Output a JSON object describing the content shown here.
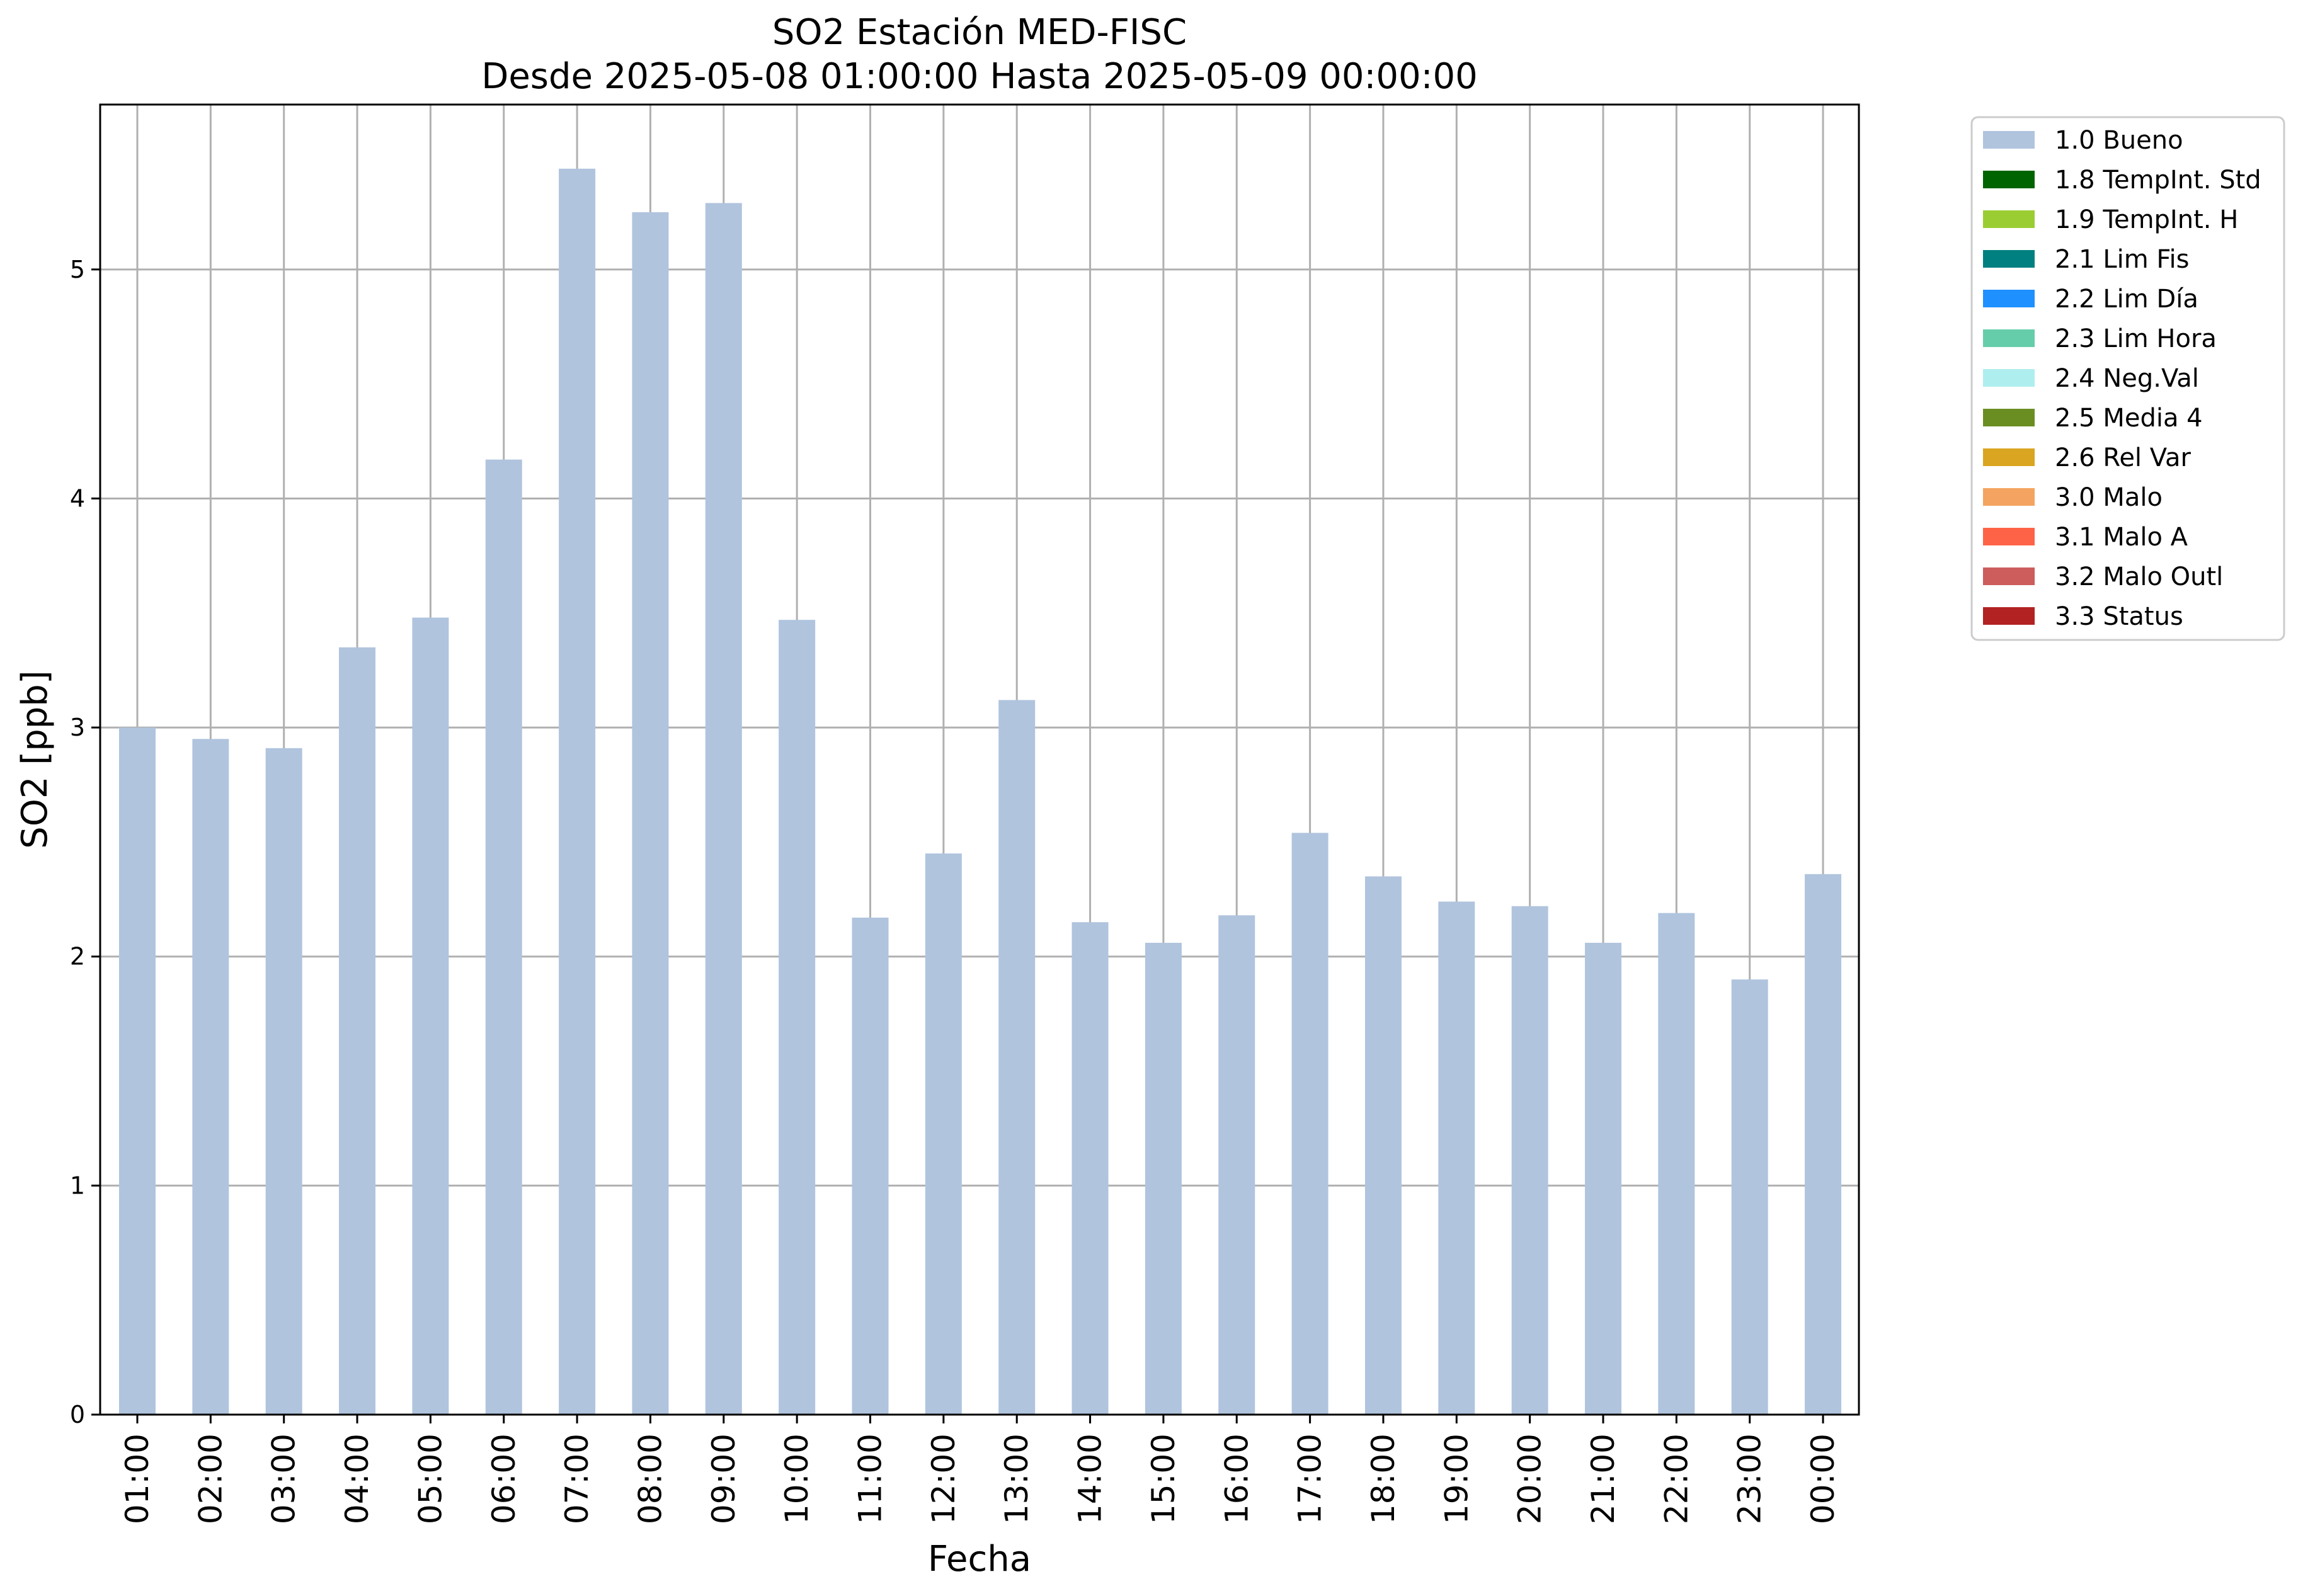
{
  "chart_data": {
    "type": "bar",
    "title": "SO2 Estación MED-FISC",
    "subtitle": "Desde 2025-05-08 01:00:00 Hasta 2025-05-09 00:00:00",
    "xlabel": "Fecha",
    "ylabel": "SO2 [ppb]",
    "ylim": [
      0,
      5.72
    ],
    "yticks": [
      "0",
      "1",
      "2",
      "3",
      "4",
      "5"
    ],
    "grid": true,
    "legend_position": "outside-top-right",
    "categories": [
      "01:00",
      "02:00",
      "03:00",
      "04:00",
      "05:00",
      "06:00",
      "07:00",
      "08:00",
      "09:00",
      "10:00",
      "11:00",
      "12:00",
      "13:00",
      "14:00",
      "15:00",
      "16:00",
      "17:00",
      "18:00",
      "19:00",
      "20:00",
      "21:00",
      "22:00",
      "23:00",
      "00:00"
    ],
    "series": [
      {
        "name": "1.0 Bueno",
        "color": "#b0c4de",
        "values": [
          3.0,
          2.95,
          2.91,
          3.35,
          3.48,
          4.17,
          5.44,
          5.25,
          5.29,
          3.47,
          2.17,
          2.45,
          3.12,
          2.15,
          2.06,
          2.18,
          2.54,
          2.35,
          2.24,
          2.22,
          2.06,
          2.19,
          1.9,
          2.36
        ]
      }
    ],
    "legend": [
      {
        "label": "1.0 Bueno",
        "color": "#b0c4de"
      },
      {
        "label": "1.8 TempInt. Std",
        "color": "#006400"
      },
      {
        "label": "1.9 TempInt. H",
        "color": "#9acd32"
      },
      {
        "label": "2.1 Lim Fis",
        "color": "#008080"
      },
      {
        "label": "2.2 Lim Día",
        "color": "#1e90ff"
      },
      {
        "label": "2.3 Lim Hora",
        "color": "#66cdaa"
      },
      {
        "label": "2.4 Neg.Val",
        "color": "#afeeee"
      },
      {
        "label": "2.5 Media 4",
        "color": "#6b8e23"
      },
      {
        "label": "2.6 Rel Var",
        "color": "#daa520"
      },
      {
        "label": "3.0 Malo",
        "color": "#f4a460"
      },
      {
        "label": "3.1 Malo A",
        "color": "#ff6347"
      },
      {
        "label": "3.2 Malo Outl",
        "color": "#cd5c5c"
      },
      {
        "label": "3.3 Status",
        "color": "#b22222"
      }
    ]
  }
}
